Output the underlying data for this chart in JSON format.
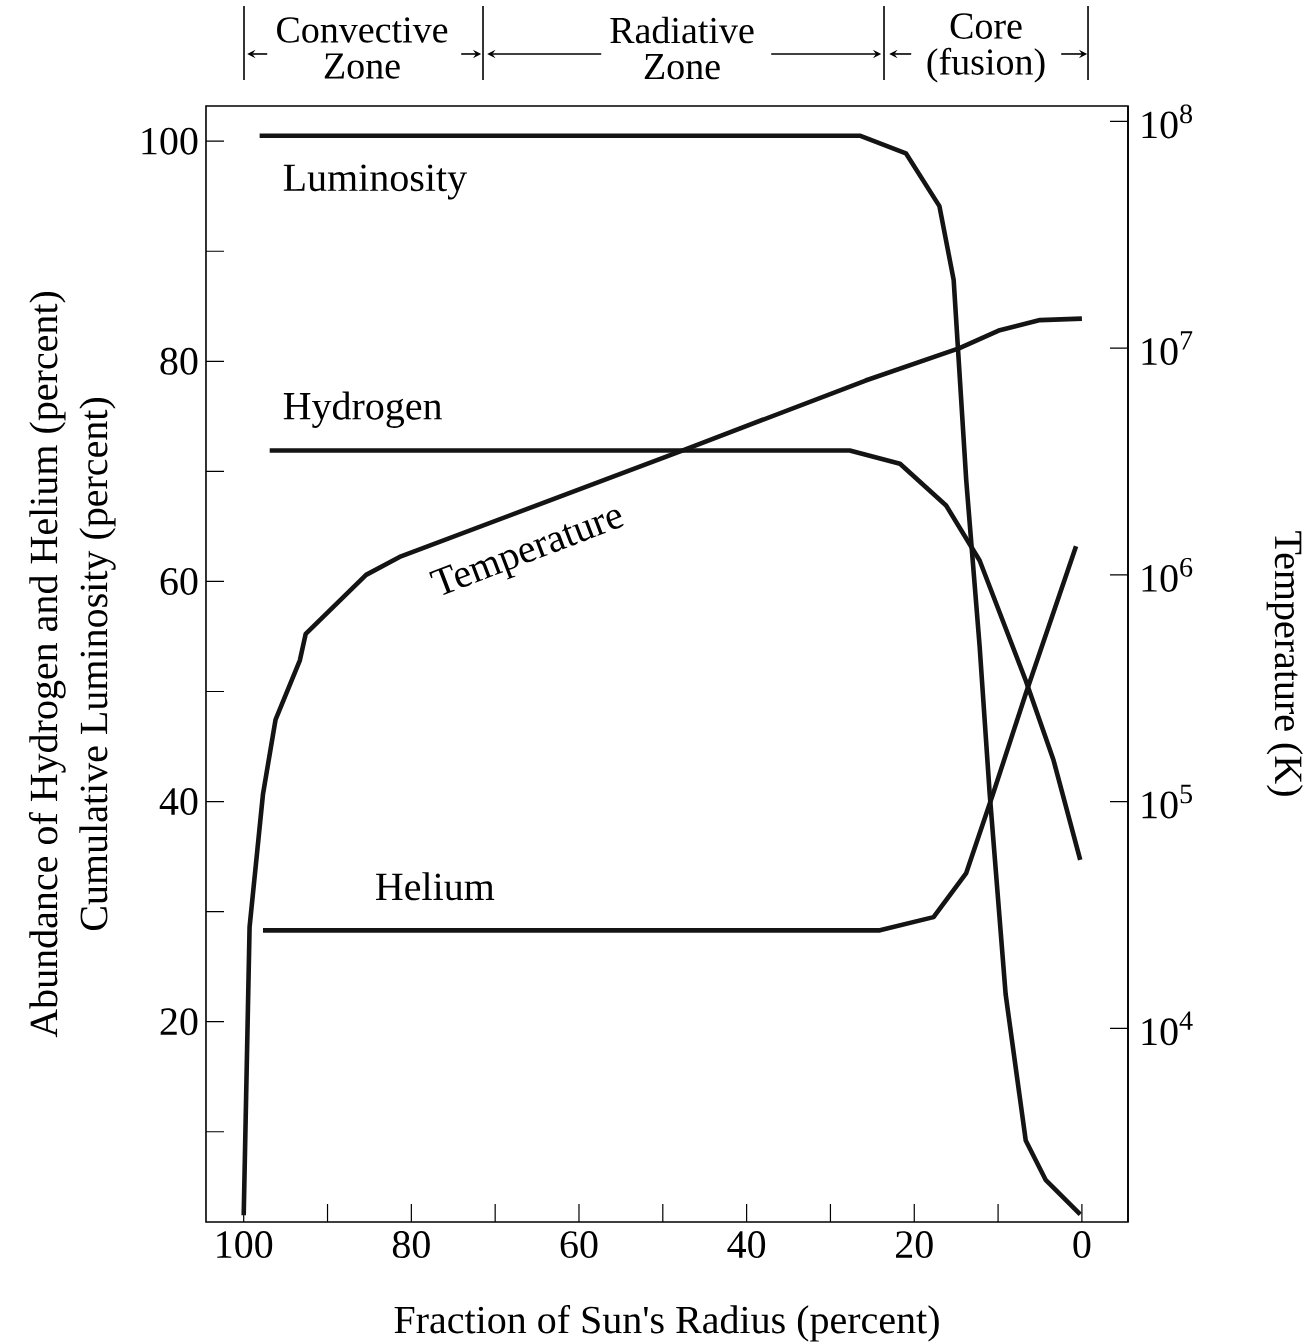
{
  "chart_data": {
    "type": "line",
    "xlabel": "Fraction of Sun's Radius (percent)",
    "ylabel": "Abundance of Hydrogen and Helium (percent) Cumulative Luminosity (percent)",
    "y2label": "Temperature (K)",
    "xlim": [
      104.5,
      -5.5
    ],
    "xticks": [
      100,
      {
        "value": 90,
        "label": null
      },
      80,
      {
        "value": 70,
        "label": null
      },
      60,
      {
        "value": 50,
        "label": null
      },
      40,
      {
        "value": 30,
        "label": null
      },
      20,
      {
        "value": 10,
        "label": null
      },
      0
    ],
    "ylim": [
      1.8,
      103.2
    ],
    "yticks": [
      {
        "value": 10,
        "label": null
      },
      20,
      {
        "value": 30,
        "label": null
      },
      40,
      {
        "value": 50,
        "label": null
      },
      60,
      {
        "value": 70,
        "label": null
      },
      80,
      {
        "value": 90,
        "label": null
      },
      100
    ],
    "y2lim": [
      1400,
      117000000
    ],
    "y2ticks": [
      {
        "value": 10000,
        "label": "10$^{4}$"
      },
      {
        "value": 100000,
        "label": "10$^{5}$"
      },
      {
        "value": 1000000,
        "label": "10$^{6}$"
      },
      {
        "value": 10000000,
        "label": "10$^{7}$"
      },
      {
        "value": 100000000,
        "label": "10$^{8}$"
      }
    ],
    "log": "y2",
    "marker": "none",
    "line_style": "solid",
    "annotations": [
      "Convective Zone",
      "Radiative Zone",
      "Core (fusion)"
    ],
    "series": [
      {
        "name": "Luminosity",
        "color": "#141414",
        "x": [
          98.1,
          26.5,
          21,
          17,
          15.3,
          13.8,
          12.2,
          11,
          9.1,
          6.7,
          4.3,
          0.2
        ],
        "values": [
          100.5,
          100.5,
          98.9,
          94.1,
          87.4,
          69.2,
          54.1,
          40.7,
          22.5,
          9.2,
          5.6,
          2.5
        ]
      },
      {
        "name": "Hydrogen",
        "color": "#141414",
        "x": [
          96.9,
          27.7,
          21.7,
          16.2,
          12.2,
          6.7,
          3.4,
          0.2
        ],
        "values": [
          71.9,
          71.9,
          70.7,
          66.9,
          61.9,
          51.0,
          43.8,
          34.7
        ]
      },
      {
        "name": "Helium",
        "color": "#141414",
        "x": [
          97.7,
          24.1,
          17.7,
          13.8,
          10.6,
          6.7,
          0.7
        ],
        "values": [
          28.3,
          28.3,
          29.5,
          33.5,
          40.7,
          49.8,
          63.2
        ]
      },
      {
        "name": "Temperature",
        "color": "#141414",
        "axis": "y2",
        "x": [
          100,
          99.3,
          97.7,
          96.2,
          93.3,
          92.6,
          85.4,
          81.4,
          48,
          25.8,
          14.6,
          9.8,
          5,
          0
        ],
        "values": [
          1500,
          28000,
          108000,
          230000,
          420000,
          550000,
          1000000,
          1200000,
          3500000,
          7200000,
          10000000,
          12000000,
          13300000,
          13500000
        ]
      }
    ]
  }
}
